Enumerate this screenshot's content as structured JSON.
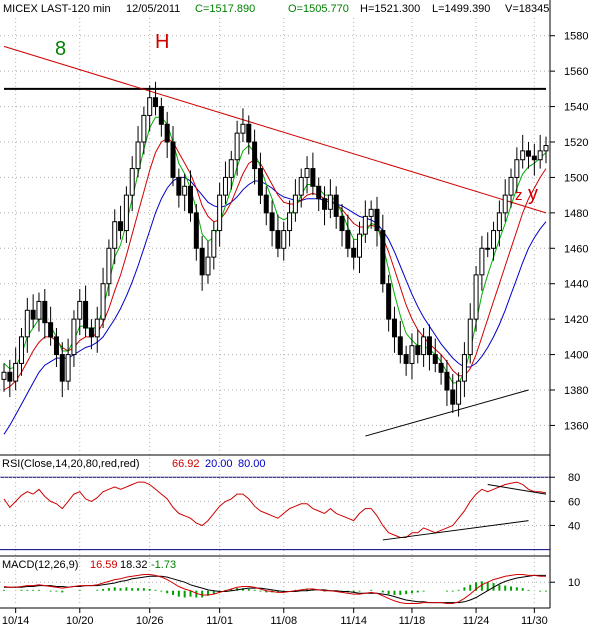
{
  "header": {
    "symbol": "MICEX LAST-120 min",
    "date": "12/05/2011",
    "close": "C=1517.890",
    "open": "O=1505.770",
    "high": "H=1521.300",
    "low": "L=1499.390",
    "volume": "V=18345"
  },
  "annotations": {
    "wave_8": "8",
    "wave_h": "H",
    "wave_z": "z",
    "wave_y": "y"
  },
  "colors": {
    "candles": "#000000",
    "ma_fast": "#00b000",
    "ma_mid": "#d00000",
    "ma_slow": "#0000c8",
    "resistance_line": "#000000",
    "trend_line": "#d00000",
    "support_line": "#000000",
    "panel_line": "#000080",
    "rsi": "#d00000",
    "macd_line": "#d00000",
    "macd_signal": "#000000",
    "macd_hist": "#00a000",
    "grid": "#b0b0b0",
    "red_text": "#d00000",
    "blue_text": "#0000c0",
    "green_text": "#008000"
  },
  "chart_data": [
    {
      "type": "candlestick",
      "x": [
        "10/14",
        "10/20",
        "10/26",
        "11/01",
        "11/08",
        "11/14",
        "11/18",
        "11/24",
        "11/30"
      ],
      "y_ticks": [
        1360,
        1380,
        1400,
        1420,
        1440,
        1460,
        1480,
        1500,
        1520,
        1540,
        1560,
        1580
      ],
      "ylim": [
        1345,
        1590
      ],
      "closes": [
        1390,
        1385,
        1395,
        1410,
        1425,
        1420,
        1430,
        1418,
        1410,
        1400,
        1385,
        1400,
        1420,
        1430,
        1415,
        1410,
        1420,
        1440,
        1460,
        1475,
        1470,
        1490,
        1505,
        1520,
        1535,
        1545,
        1540,
        1530,
        1520,
        1500,
        1490,
        1495,
        1480,
        1460,
        1445,
        1455,
        1470,
        1490,
        1500,
        1510,
        1525,
        1530,
        1520,
        1505,
        1490,
        1480,
        1470,
        1460,
        1470,
        1480,
        1490,
        1500,
        1505,
        1495,
        1488,
        1482,
        1490,
        1478,
        1470,
        1460,
        1455,
        1468,
        1478,
        1482,
        1470,
        1440,
        1420,
        1410,
        1400,
        1395,
        1405,
        1400,
        1410,
        1400,
        1395,
        1390,
        1380,
        1372,
        1385,
        1400,
        1420,
        1445,
        1460,
        1460,
        1470,
        1480,
        1490,
        1500,
        1510,
        1515,
        1512,
        1510,
        1515,
        1518
      ],
      "ma_fast": [
        1395,
        1392,
        1393,
        1400,
        1410,
        1415,
        1420,
        1420,
        1416,
        1410,
        1402,
        1402,
        1408,
        1416,
        1416,
        1414,
        1416,
        1426,
        1440,
        1455,
        1462,
        1474,
        1488,
        1502,
        1516,
        1528,
        1534,
        1534,
        1530,
        1520,
        1508,
        1502,
        1494,
        1482,
        1468,
        1464,
        1466,
        1474,
        1484,
        1494,
        1506,
        1515,
        1518,
        1514,
        1506,
        1496,
        1488,
        1478,
        1476,
        1478,
        1483,
        1490,
        1496,
        1496,
        1494,
        1490,
        1490,
        1486,
        1480,
        1472,
        1465,
        1465,
        1469,
        1474,
        1473,
        1462,
        1448,
        1434,
        1422,
        1412,
        1408,
        1405,
        1405,
        1403,
        1400,
        1396,
        1390,
        1384,
        1384,
        1390,
        1402,
        1418,
        1434,
        1445,
        1455,
        1465,
        1474,
        1484,
        1494,
        1502,
        1506,
        1508,
        1511,
        1514
      ],
      "ma_mid": [
        1380,
        1382,
        1385,
        1390,
        1396,
        1402,
        1407,
        1410,
        1410,
        1408,
        1404,
        1402,
        1404,
        1408,
        1410,
        1410,
        1412,
        1418,
        1426,
        1436,
        1445,
        1456,
        1468,
        1480,
        1492,
        1504,
        1514,
        1520,
        1522,
        1520,
        1514,
        1508,
        1502,
        1494,
        1484,
        1478,
        1475,
        1476,
        1480,
        1486,
        1494,
        1502,
        1508,
        1510,
        1508,
        1502,
        1496,
        1490,
        1486,
        1485,
        1485,
        1487,
        1490,
        1491,
        1490,
        1488,
        1487,
        1485,
        1482,
        1478,
        1474,
        1472,
        1472,
        1473,
        1472,
        1466,
        1458,
        1448,
        1438,
        1428,
        1420,
        1414,
        1410,
        1406,
        1403,
        1400,
        1396,
        1391,
        1388,
        1388,
        1392,
        1400,
        1410,
        1420,
        1430,
        1440,
        1450,
        1460,
        1470,
        1480,
        1488,
        1494,
        1500,
        1505
      ],
      "ma_slow": [
        1355,
        1360,
        1366,
        1372,
        1378,
        1384,
        1390,
        1394,
        1396,
        1398,
        1398,
        1398,
        1400,
        1402,
        1404,
        1405,
        1407,
        1410,
        1415,
        1420,
        1426,
        1433,
        1441,
        1450,
        1460,
        1470,
        1480,
        1488,
        1494,
        1498,
        1500,
        1500,
        1498,
        1494,
        1490,
        1486,
        1484,
        1483,
        1484,
        1486,
        1489,
        1493,
        1496,
        1498,
        1498,
        1496,
        1494,
        1491,
        1489,
        1488,
        1487,
        1487,
        1488,
        1488,
        1488,
        1487,
        1486,
        1485,
        1484,
        1482,
        1480,
        1478,
        1477,
        1476,
        1474,
        1470,
        1465,
        1458,
        1450,
        1442,
        1434,
        1427,
        1421,
        1416,
        1411,
        1406,
        1402,
        1398,
        1395,
        1393,
        1393,
        1395,
        1399,
        1404,
        1410,
        1417,
        1425,
        1434,
        1443,
        1452,
        1460,
        1466,
        1471,
        1475
      ],
      "lines": {
        "resistance": [
          [
            0,
            1550
          ],
          [
            93,
            1550
          ]
        ],
        "trend": [
          [
            0,
            1574
          ],
          [
            93,
            1480
          ]
        ],
        "support": [
          [
            62,
            1354
          ],
          [
            90,
            1380
          ]
        ]
      }
    },
    {
      "type": "line",
      "title": "RSI(Close,14,20,80,red,red)",
      "value": "66.92",
      "lower": "20.00",
      "upper": "80.00",
      "y_ticks": [
        40,
        60,
        80
      ],
      "ylim": [
        18,
        86
      ],
      "levels": [
        20,
        80
      ],
      "values": [
        62,
        55,
        60,
        65,
        68,
        66,
        70,
        64,
        60,
        58,
        54,
        60,
        66,
        68,
        62,
        60,
        63,
        68,
        70,
        72,
        70,
        72,
        74,
        76,
        76,
        74,
        70,
        66,
        62,
        55,
        50,
        48,
        46,
        42,
        40,
        44,
        50,
        56,
        60,
        62,
        66,
        66,
        62,
        56,
        52,
        50,
        48,
        46,
        50,
        54,
        56,
        58,
        58,
        54,
        52,
        50,
        54,
        50,
        48,
        46,
        44,
        50,
        54,
        54,
        48,
        40,
        34,
        32,
        30,
        30,
        34,
        34,
        38,
        36,
        34,
        36,
        38,
        40,
        46,
        52,
        60,
        66,
        70,
        68,
        70,
        72,
        74,
        75,
        76,
        74,
        70,
        68,
        68,
        67
      ],
      "trend_lines": [
        [
          [
            65,
            28
          ],
          [
            90,
            44
          ]
        ],
        [
          [
            83,
            74
          ],
          [
            93,
            66
          ]
        ]
      ]
    },
    {
      "type": "line",
      "title": "MACD(12,26,9)",
      "macd_value": "16.59",
      "signal_value": "18.32",
      "hist_value": "-1.73",
      "y_ticks": [
        10
      ],
      "ylim": [
        -18,
        22
      ],
      "macd": [
        5,
        4,
        4,
        5,
        6,
        6,
        7,
        6,
        5,
        4,
        3,
        4,
        5,
        6,
        6,
        6,
        7,
        9,
        11,
        13,
        14,
        16,
        17,
        18,
        19,
        19,
        18,
        16,
        13,
        9,
        5,
        2,
        0,
        -3,
        -5,
        -5,
        -4,
        -2,
        0,
        2,
        4,
        5,
        5,
        4,
        2,
        0,
        -1,
        -2,
        -2,
        -1,
        0,
        1,
        2,
        2,
        1,
        0,
        0,
        -1,
        -2,
        -3,
        -4,
        -4,
        -3,
        -2,
        -3,
        -6,
        -9,
        -12,
        -14,
        -15,
        -15,
        -15,
        -14,
        -14,
        -14,
        -14,
        -15,
        -15,
        -13,
        -9,
        -4,
        2,
        7,
        10,
        13,
        15,
        17,
        18,
        19,
        19,
        18,
        18,
        17,
        17
      ],
      "signal": [
        4,
        4,
        4,
        4,
        5,
        5,
        6,
        6,
        6,
        5,
        5,
        4,
        5,
        5,
        6,
        6,
        6,
        7,
        8,
        9,
        11,
        12,
        14,
        15,
        16,
        17,
        17,
        17,
        16,
        14,
        12,
        10,
        7,
        5,
        3,
        1,
        0,
        -1,
        -1,
        0,
        1,
        2,
        3,
        3,
        3,
        2,
        1,
        0,
        -1,
        -1,
        -1,
        0,
        0,
        1,
        1,
        1,
        0,
        0,
        -1,
        -1,
        -2,
        -3,
        -3,
        -3,
        -3,
        -4,
        -5,
        -7,
        -9,
        -11,
        -12,
        -13,
        -13,
        -14,
        -14,
        -14,
        -14,
        -14,
        -14,
        -13,
        -11,
        -8,
        -4,
        0,
        4,
        8,
        11,
        13,
        15,
        16,
        17,
        18,
        18,
        18
      ]
    }
  ]
}
